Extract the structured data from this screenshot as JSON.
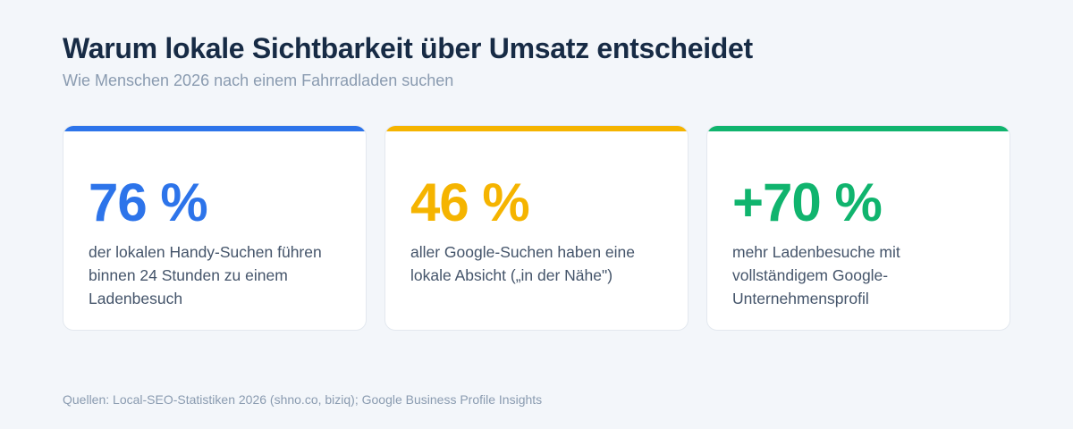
{
  "header": {
    "title": "Warum lokale Sichtbarkeit über Umsatz entscheidet",
    "subtitle": "Wie Menschen 2026 nach einem Fahrradladen suchen"
  },
  "cards": [
    {
      "value": "76 %",
      "text": "der lokalen Handy-Suchen führen binnen 24 Stunden zu einem Ladenbesuch",
      "accent_color": "#2d74ea"
    },
    {
      "value": "46 %",
      "text": "aller Google-Suchen haben eine lokale Absicht („in der Nähe\")",
      "accent_color": "#f5b400"
    },
    {
      "value": "+70 %",
      "text": "mehr Ladenbesuche mit vollständigem Google-Unternehmensprofil",
      "accent_color": "#10b46e"
    }
  ],
  "footer": {
    "source": "Quellen: Local-SEO-Statistiken 2026 (shno.co, biziq); Google Business Profile Insights"
  }
}
